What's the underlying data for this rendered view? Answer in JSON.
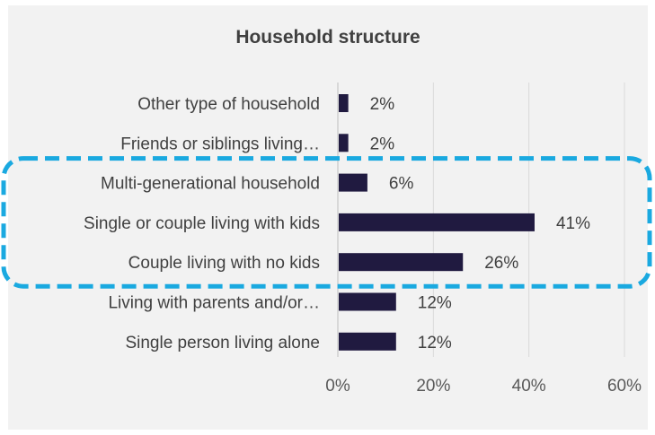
{
  "chart_data": {
    "type": "bar",
    "orientation": "horizontal",
    "title": "Household structure",
    "categories": [
      "Other type of household",
      "Friends or siblings living…",
      "Multi-generational household",
      "Single or couple living with kids",
      "Couple living with no kids",
      "Living with parents and/or…",
      "Single person living alone"
    ],
    "values": [
      2,
      2,
      6,
      41,
      26,
      12,
      12
    ],
    "value_labels": [
      "2%",
      "2%",
      "6%",
      "41%",
      "26%",
      "12%",
      "12%"
    ],
    "x_ticks": [
      "0%",
      "20%",
      "40%",
      "60%"
    ],
    "xlim": [
      0,
      60
    ],
    "grid": true,
    "bar_color": "#201a40",
    "highlight": {
      "style": "dashed rounded box",
      "color": "#1aa9e0",
      "categories": [
        "Multi-generational household",
        "Single or couple living with kids",
        "Couple living with no kids"
      ]
    }
  }
}
